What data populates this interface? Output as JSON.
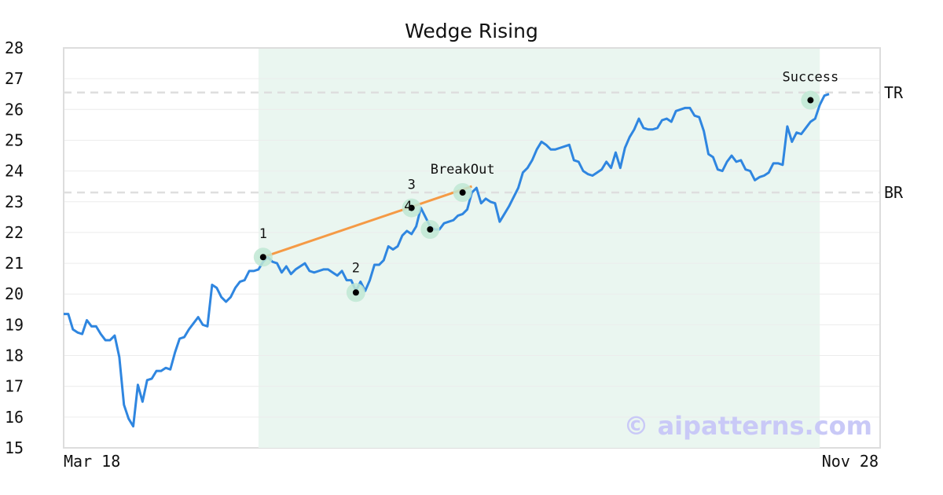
{
  "chart_data": {
    "type": "line",
    "title": "Wedge Rising",
    "xlabel": "",
    "ylabel": "",
    "ylim": [
      15,
      28
    ],
    "yticks": [
      "15",
      "16",
      "17",
      "18",
      "19",
      "20",
      "21",
      "22",
      "23",
      "24",
      "25",
      "26",
      "27",
      "28"
    ],
    "x_tick_labels": {
      "start": "Mar 18",
      "end": "Nov 28"
    },
    "grid": "horizontal",
    "colors": {
      "line": "#2f86e0",
      "trendline": "#f59a45",
      "highlight": "#eaf6f0",
      "marker_ring": "#bfe8d3",
      "level_line": "#dedede",
      "watermark": "#c9c9f7"
    },
    "highlight_range": [
      42,
      163
    ],
    "series": [
      {
        "values": [
          19.35,
          19.35,
          18.85,
          18.75,
          18.7,
          19.15,
          18.95,
          18.95,
          18.7,
          18.5,
          18.5,
          18.65,
          17.95,
          16.4,
          15.95,
          15.7,
          17.05,
          16.5,
          17.2,
          17.25,
          17.5,
          17.5,
          17.6,
          17.55,
          18.1,
          18.55,
          18.6,
          18.85,
          19.05,
          19.25,
          19.0,
          18.95,
          20.3,
          20.2,
          19.9,
          19.75,
          19.9,
          20.2,
          20.4,
          20.45,
          20.75,
          20.75,
          20.8,
          21.05,
          21.2,
          21.05,
          21.0,
          20.7,
          20.9,
          20.65,
          20.8,
          20.9,
          21.0,
          20.75,
          20.7,
          20.75,
          20.8,
          20.8,
          20.7,
          20.6,
          20.75,
          20.45,
          20.45,
          20.1,
          20.4,
          20.1,
          20.45,
          20.95,
          20.95,
          21.1,
          21.55,
          21.45,
          21.55,
          21.9,
          22.05,
          21.95,
          22.2,
          22.8,
          22.5,
          22.2,
          22.1,
          22.1,
          22.3,
          22.35,
          22.4,
          22.55,
          22.6,
          22.75,
          23.3,
          23.45,
          22.95,
          23.1,
          23.0,
          22.95,
          22.35,
          22.6,
          22.85,
          23.15,
          23.45,
          23.95,
          24.1,
          24.35,
          24.7,
          24.95,
          24.85,
          24.7,
          24.7,
          24.75,
          24.8,
          24.85,
          24.35,
          24.3,
          24.0,
          23.9,
          23.85,
          23.95,
          24.05,
          24.3,
          24.1,
          24.6,
          24.1,
          24.75,
          25.1,
          25.35,
          25.7,
          25.4,
          25.35,
          25.35,
          25.4,
          25.65,
          25.7,
          25.6,
          25.95,
          26.0,
          26.05,
          26.05,
          25.8,
          25.75,
          25.3,
          24.55,
          24.45,
          24.05,
          24.0,
          24.3,
          24.5,
          24.3,
          24.35,
          24.05,
          24.0,
          23.7,
          23.8,
          23.85,
          23.95,
          24.25,
          24.25,
          24.2,
          25.45,
          24.95,
          25.25,
          25.2,
          25.4,
          25.6,
          25.7,
          26.15,
          26.45,
          26.5
        ]
      }
    ],
    "trendline": {
      "from": [
        43,
        21.2
      ],
      "to": [
        88,
        23.5
      ]
    },
    "levels": [
      {
        "label": "TR",
        "value": 26.55
      },
      {
        "label": "BR",
        "value": 23.3
      }
    ],
    "points": [
      {
        "label": "1",
        "x": 43,
        "y": 21.2
      },
      {
        "label": "2",
        "x": 63,
        "y": 20.05
      },
      {
        "label": "3",
        "x": 75,
        "y": 22.8
      },
      {
        "label": "4",
        "x": 79,
        "y": 22.1
      },
      {
        "label": "BreakOut",
        "x": 86,
        "y": 23.3
      },
      {
        "label": "Success",
        "x": 161,
        "y": 26.3
      }
    ],
    "watermark": "© aipatterns.com"
  }
}
